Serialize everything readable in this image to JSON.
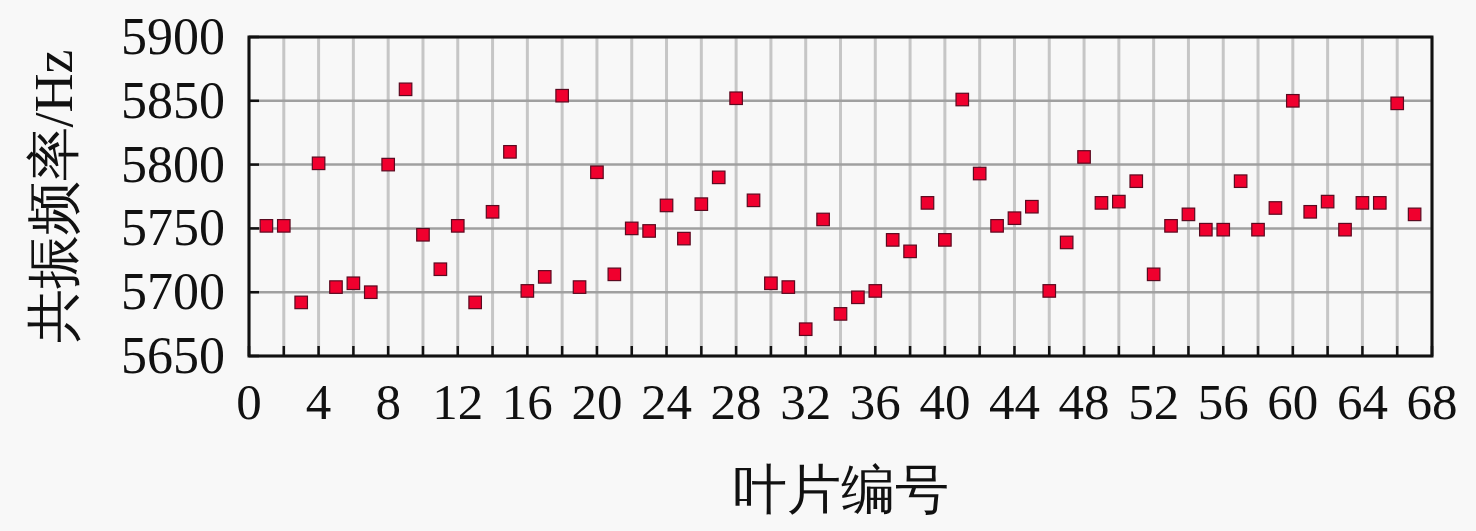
{
  "chart_data": {
    "type": "scatter",
    "xlabel": "叶片编号",
    "ylabel": "共振频率/Hz",
    "x": [
      1,
      2,
      3,
      4,
      5,
      6,
      7,
      8,
      9,
      10,
      11,
      12,
      13,
      14,
      15,
      16,
      17,
      18,
      19,
      20,
      21,
      22,
      23,
      24,
      25,
      26,
      27,
      28,
      29,
      30,
      31,
      32,
      33,
      34,
      35,
      36,
      37,
      38,
      39,
      40,
      41,
      42,
      43,
      44,
      45,
      46,
      47,
      48,
      49,
      50,
      51,
      52,
      53,
      54,
      55,
      56,
      57,
      58,
      59,
      60,
      61,
      62,
      63,
      64,
      65,
      66,
      67
    ],
    "series": [
      {
        "color": "#f0002e",
        "values": [
          5752,
          5752,
          5692,
          5801,
          5704,
          5707,
          5700,
          5800,
          5859,
          5745,
          5718,
          5752,
          5692,
          5763,
          5810,
          5701,
          5712,
          5854,
          5704,
          5794,
          5714,
          5750,
          5748,
          5768,
          5742,
          5769,
          5790,
          5852,
          5772,
          5707,
          5704,
          5671,
          5757,
          5683,
          5696,
          5701,
          5741,
          5732,
          5770,
          5741,
          5851,
          5793,
          5752,
          5758,
          5767,
          5701,
          5739,
          5806,
          5770,
          5771,
          5787,
          5714,
          5752,
          5761,
          5749,
          5749,
          5787,
          5749,
          5766,
          5850,
          5763,
          5771,
          5749,
          5770,
          5770,
          5848,
          5761
        ]
      }
    ],
    "xlim": [
      0,
      68
    ],
    "ylim": [
      5650,
      5900
    ],
    "xticks": [
      0,
      {
        "value": 2,
        "label": null
      },
      4,
      {
        "value": 6,
        "label": null
      },
      8,
      {
        "value": 10,
        "label": null
      },
      12,
      {
        "value": 14,
        "label": null
      },
      16,
      {
        "value": 18,
        "label": null
      },
      20,
      {
        "value": 22,
        "label": null
      },
      24,
      {
        "value": 26,
        "label": null
      },
      28,
      {
        "value": 30,
        "label": null
      },
      32,
      {
        "value": 34,
        "label": null
      },
      36,
      {
        "value": 38,
        "label": null
      },
      40,
      {
        "value": 42,
        "label": null
      },
      44,
      {
        "value": 46,
        "label": null
      },
      48,
      {
        "value": 50,
        "label": null
      },
      52,
      {
        "value": 54,
        "label": null
      },
      56,
      {
        "value": 58,
        "label": null
      },
      60,
      {
        "value": 62,
        "label": null
      },
      64,
      {
        "value": 66,
        "label": null
      },
      68
    ],
    "yticks": [
      5650,
      5700,
      5750,
      5800,
      5850,
      5900
    ],
    "grid": true,
    "marker": "square"
  }
}
